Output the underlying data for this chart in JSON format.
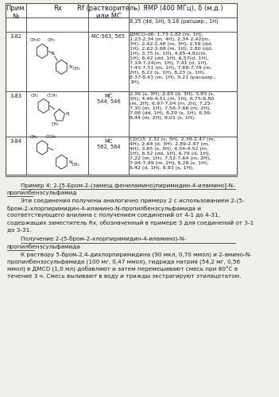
{
  "background_color": "#f0f0eb",
  "table_bg": "#ffffff",
  "border_color": "#555555",
  "text_color": "#1a1a1a",
  "font_size_header": 6.0,
  "font_size_body": 4.8,
  "font_size_text": 5.2,
  "headers": [
    "Прим.\n№",
    "Rx",
    "Rf (растворитель)\nили МС",
    "ЯМР (400 МГц), δ (м.д.)"
  ],
  "row0_nmr": "8,35 (dd, 1H), 9,18 (расшир., 1H)",
  "row1_id": "3-82",
  "row1_ms": "МС:563, 565",
  "row1_nmr": "ДМСО-d6: 1,73-1,82 (m, 1H),\n2,23-2,34 (m, 4H), 2,34-2,42(m,\n3H), 2,42-2,46 (m, 3H), 2,59 (dd,\n1H), 2,62-2,68 (m, 1H), 2,80 (dd,\n1H), 3,75 (s, 1H), 4,85-4,91(m,\n1H), 6,42 (dd, 1H), 6,57(d, 1H),\n7,19-7,24(m, 1H), 7,41 (d, 1H),\n7,43-7,51 (m, 1H), 7,68-7,79 (m,\n2H), 8,22 (s, 1H), 8,23 (s, 1H),\n8,37-8,43 (m, 1H), 9,21 (расшир.,\n1H),",
  "row2_id": "3-83",
  "row2_ms": "МС\n544, 546",
  "row2_nmr": "2,36 (s, 3H), 2,65 (d, 3H), 3,93 (s,\n3H), 4,46-4,51 (m, 1H), 6,75-6,80\n(m, 2H), 6,97-7,04 (m, 2h), 7,25-\n7,30 (m, 1H), 7,56-7,66 (m, 2H),\n7,98 (dd, 1H), 8,29 (s, 1H), 8,36-\n8,44 (m, 2H), 9,01 (s, 1H),",
  "row3_id": "3-84",
  "row3_ms": "МС\n562, 564",
  "row3_nmr": "CDCl3: 2,32 (s, 3H), 2,39-2,47 (m,\n4H), 2,64 (d, 3H), 2,89-2,97 (m,\n4H), 3,85 (s, 3H), 4,54-4,52 (m,\n1H), 6,52 (dd, 1H), 6,79 (d, 1H),\n7,22 (m, 1H), 7,52-7,64 (m, 2H),\n7,94-7,99 (m, 2H), 8,28 (s, 1H),\n8,42 (d, 1H), 8,93 (s, 1H),",
  "example4_heading_l1": "Пример 4: 2-[5-Бром-2-(замещ фениламино)пиримидин-4-иламино]-N-",
  "example4_heading_l2": "пропилбензсульфамид",
  "example4_body_lines": [
    "Эти соединения получены аналогично примеру 2 с использованием 2-(5-",
    "бром-2-хлорпиримидин-4-иламино-N-пропилбензсульфамида и",
    "соответствующего анилина с получением соединений от 4-1 до 4-31,",
    "содержащих заместитель Rx, обозначенный в примере 3 для соединений от 3-1",
    "до 3-31."
  ],
  "subheading_l1": "Получение 2-(5-бром-2-хлорпиримидин-4-иламино)-N-",
  "subheading_l2": "пропилбензсульфамида",
  "body2_lines": [
    "К раствору 5-бром-2,4-дихлорпиримидина (90 мкл, 0,70 ммол) и 2-амино-N-",
    "пропилбензосульфамида (100 мг, 0,47 ммол), гидрида натрия (54,2 мг, 0,56",
    "ммол) в ДМСО (1,0 мл) добавляют и затем перемешивают смесь при 80°C в",
    "течение 3 ч. Смесь выливают в воду и трижды экстрагируют этилацетатом."
  ]
}
